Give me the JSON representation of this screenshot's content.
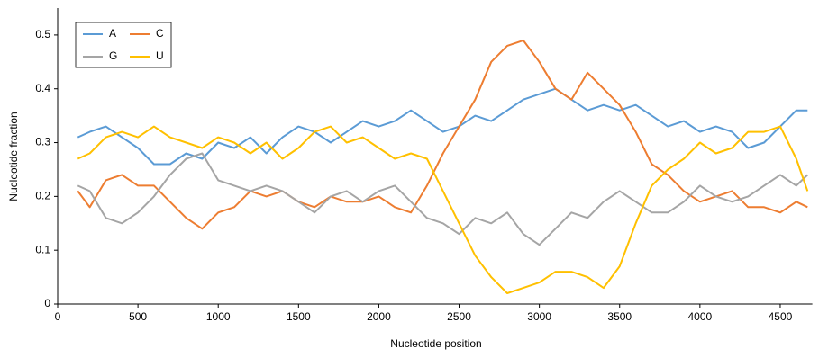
{
  "chart_data": {
    "type": "line",
    "xlabel": "Nucleotide position",
    "ylabel": "Nucleotide fraction",
    "x": [
      125,
      200,
      300,
      400,
      500,
      600,
      700,
      800,
      900,
      1000,
      1100,
      1200,
      1300,
      1400,
      1500,
      1600,
      1700,
      1800,
      1900,
      2000,
      2100,
      2200,
      2300,
      2400,
      2500,
      2600,
      2700,
      2800,
      2900,
      3000,
      3100,
      3200,
      3300,
      3400,
      3500,
      3600,
      3700,
      3800,
      3900,
      4000,
      4100,
      4200,
      4300,
      4400,
      4500,
      4600,
      4670
    ],
    "series": [
      {
        "name": "A",
        "color": "#5b9bd5",
        "values": [
          0.31,
          0.32,
          0.33,
          0.31,
          0.29,
          0.26,
          0.26,
          0.28,
          0.27,
          0.3,
          0.29,
          0.31,
          0.28,
          0.31,
          0.33,
          0.32,
          0.3,
          0.32,
          0.34,
          0.33,
          0.34,
          0.36,
          0.34,
          0.32,
          0.33,
          0.35,
          0.34,
          0.36,
          0.38,
          0.39,
          0.4,
          0.38,
          0.36,
          0.37,
          0.36,
          0.37,
          0.35,
          0.33,
          0.34,
          0.32,
          0.33,
          0.32,
          0.29,
          0.3,
          0.33,
          0.36,
          0.36
        ]
      },
      {
        "name": "C",
        "color": "#ed7d31",
        "values": [
          0.21,
          0.18,
          0.23,
          0.24,
          0.22,
          0.22,
          0.19,
          0.16,
          0.14,
          0.17,
          0.18,
          0.21,
          0.2,
          0.21,
          0.19,
          0.18,
          0.2,
          0.19,
          0.19,
          0.2,
          0.18,
          0.17,
          0.22,
          0.28,
          0.33,
          0.38,
          0.45,
          0.48,
          0.49,
          0.45,
          0.4,
          0.38,
          0.43,
          0.4,
          0.37,
          0.32,
          0.26,
          0.24,
          0.21,
          0.19,
          0.2,
          0.21,
          0.18,
          0.18,
          0.17,
          0.19,
          0.18
        ]
      },
      {
        "name": "G",
        "color": "#a5a5a5",
        "values": [
          0.22,
          0.21,
          0.16,
          0.15,
          0.17,
          0.2,
          0.24,
          0.27,
          0.28,
          0.23,
          0.22,
          0.21,
          0.22,
          0.21,
          0.19,
          0.17,
          0.2,
          0.21,
          0.19,
          0.21,
          0.22,
          0.19,
          0.16,
          0.15,
          0.13,
          0.16,
          0.15,
          0.17,
          0.13,
          0.11,
          0.14,
          0.17,
          0.16,
          0.19,
          0.21,
          0.19,
          0.17,
          0.17,
          0.19,
          0.22,
          0.2,
          0.19,
          0.2,
          0.22,
          0.24,
          0.22,
          0.24
        ]
      },
      {
        "name": "U",
        "color": "#ffc000",
        "values": [
          0.27,
          0.28,
          0.31,
          0.32,
          0.31,
          0.33,
          0.31,
          0.3,
          0.29,
          0.31,
          0.3,
          0.28,
          0.3,
          0.27,
          0.29,
          0.32,
          0.33,
          0.3,
          0.31,
          0.29,
          0.27,
          0.28,
          0.27,
          0.21,
          0.15,
          0.09,
          0.05,
          0.02,
          0.03,
          0.04,
          0.06,
          0.06,
          0.05,
          0.03,
          0.07,
          0.15,
          0.22,
          0.25,
          0.27,
          0.3,
          0.28,
          0.29,
          0.32,
          0.32,
          0.33,
          0.27,
          0.21
        ]
      }
    ],
    "xlim": [
      0,
      4700
    ],
    "ylim": [
      0,
      0.55
    ],
    "xticks": [
      0,
      500,
      1000,
      1500,
      2000,
      2500,
      3000,
      3500,
      4000,
      4500
    ],
    "yticks": [
      0,
      0.1,
      0.2,
      0.3,
      0.4,
      0.5
    ],
    "grid": false
  }
}
